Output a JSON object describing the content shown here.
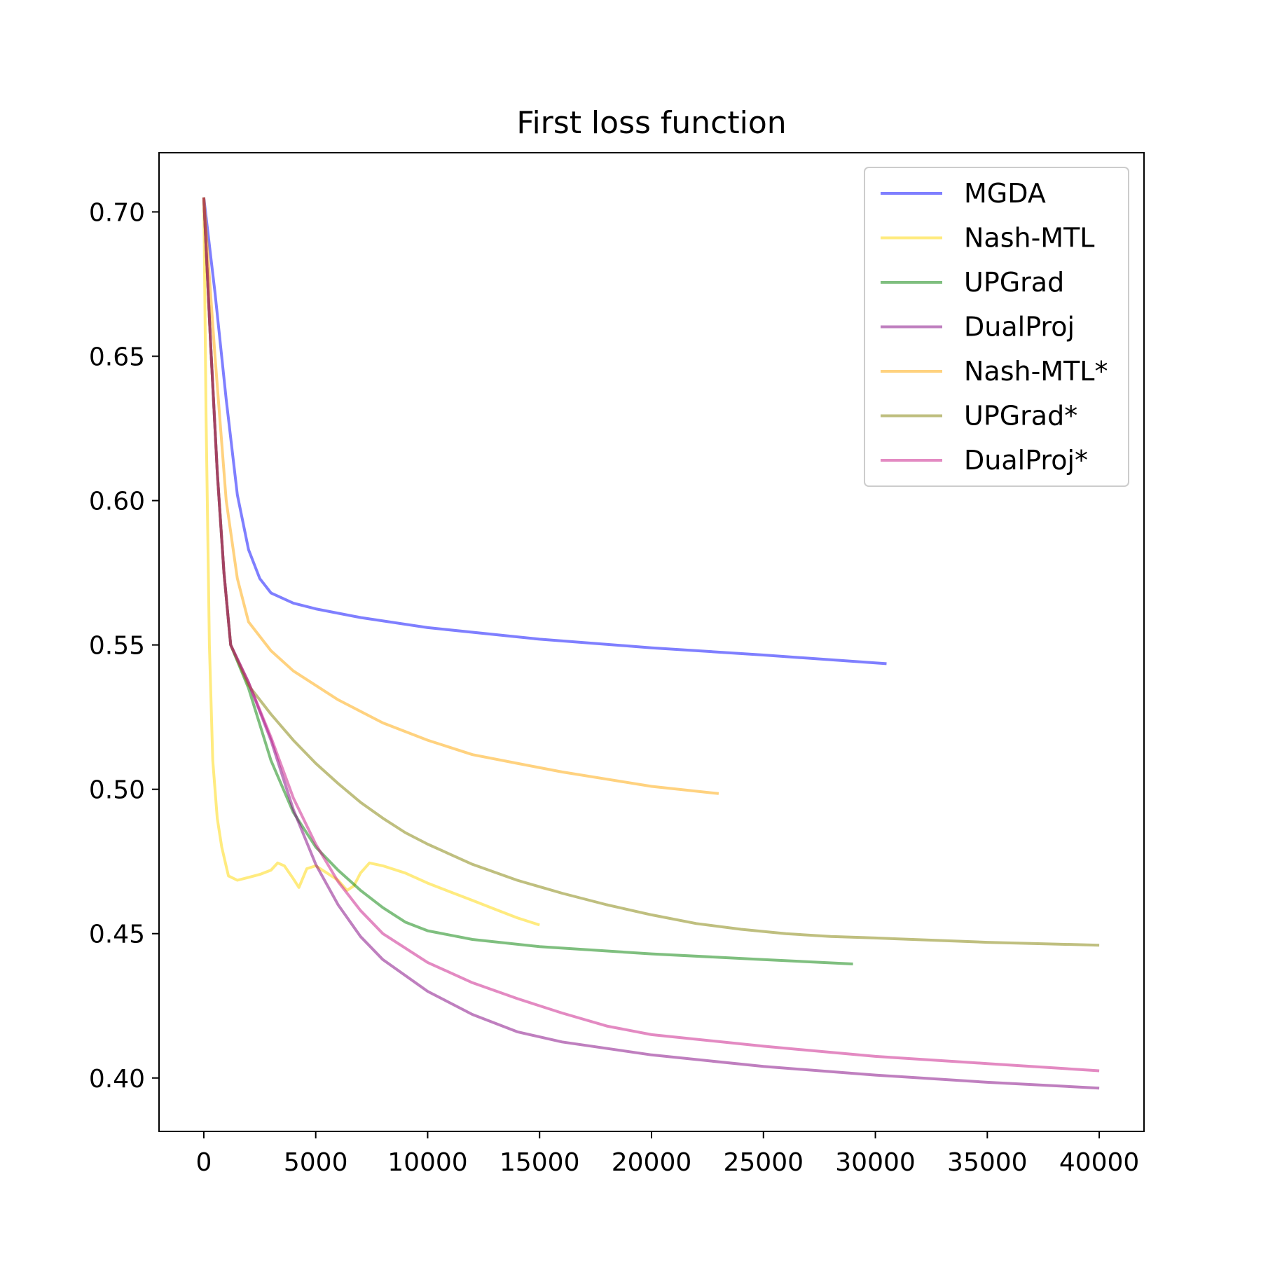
{
  "chart_data": {
    "type": "line",
    "title": "First loss function",
    "xlabel": "",
    "ylabel": "",
    "xlim": [
      -2000,
      42000
    ],
    "ylim": [
      0.3815,
      0.7205
    ],
    "xticks": [
      0,
      5000,
      10000,
      15000,
      20000,
      25000,
      30000,
      35000,
      40000
    ],
    "yticks": [
      0.4,
      0.45,
      0.5,
      0.55,
      0.6,
      0.65,
      0.7
    ],
    "grid": false,
    "legend": {
      "placement": "top-right"
    },
    "series": [
      {
        "name": "MGDA",
        "color": "#0000ff",
        "opacity": 0.5,
        "points": [
          [
            0,
            0.705
          ],
          [
            500,
            0.672
          ],
          [
            1000,
            0.635
          ],
          [
            1500,
            0.602
          ],
          [
            2000,
            0.583
          ],
          [
            2500,
            0.573
          ],
          [
            3000,
            0.568
          ],
          [
            4000,
            0.5645
          ],
          [
            5000,
            0.5625
          ],
          [
            7000,
            0.5595
          ],
          [
            10000,
            0.556
          ],
          [
            15000,
            0.552
          ],
          [
            20000,
            0.549
          ],
          [
            25000,
            0.5465
          ],
          [
            30500,
            0.5435
          ]
        ]
      },
      {
        "name": "Nash-MTL",
        "color": "#ffd700",
        "opacity": 0.5,
        "points": [
          [
            0,
            0.705
          ],
          [
            100,
            0.63
          ],
          [
            250,
            0.55
          ],
          [
            400,
            0.51
          ],
          [
            600,
            0.49
          ],
          [
            800,
            0.48
          ],
          [
            1100,
            0.47
          ],
          [
            1500,
            0.4685
          ],
          [
            2000,
            0.4695
          ],
          [
            2500,
            0.4705
          ],
          [
            3000,
            0.472
          ],
          [
            3300,
            0.4745
          ],
          [
            3600,
            0.4735
          ],
          [
            4000,
            0.469
          ],
          [
            4250,
            0.466
          ],
          [
            4600,
            0.4725
          ],
          [
            5000,
            0.4735
          ],
          [
            5500,
            0.471
          ],
          [
            6000,
            0.4685
          ],
          [
            6400,
            0.465
          ],
          [
            6700,
            0.4665
          ],
          [
            7000,
            0.471
          ],
          [
            7400,
            0.4745
          ],
          [
            8000,
            0.4735
          ],
          [
            9000,
            0.471
          ],
          [
            10000,
            0.4675
          ],
          [
            11000,
            0.4645
          ],
          [
            12000,
            0.4615
          ],
          [
            13000,
            0.4585
          ],
          [
            14000,
            0.4555
          ],
          [
            15000,
            0.453
          ]
        ]
      },
      {
        "name": "UPGrad",
        "color": "#008000",
        "opacity": 0.5,
        "points": [
          [
            0,
            0.705
          ],
          [
            300,
            0.655
          ],
          [
            600,
            0.61
          ],
          [
            900,
            0.575
          ],
          [
            1200,
            0.55
          ],
          [
            2000,
            0.535
          ],
          [
            3000,
            0.51
          ],
          [
            4000,
            0.492
          ],
          [
            5000,
            0.48
          ],
          [
            6000,
            0.472
          ],
          [
            7000,
            0.465
          ],
          [
            8000,
            0.459
          ],
          [
            9000,
            0.454
          ],
          [
            10000,
            0.451
          ],
          [
            12000,
            0.448
          ],
          [
            15000,
            0.4455
          ],
          [
            20000,
            0.443
          ],
          [
            25000,
            0.441
          ],
          [
            29000,
            0.4395
          ]
        ]
      },
      {
        "name": "DualProj",
        "color": "#800080",
        "opacity": 0.5,
        "points": [
          [
            0,
            0.705
          ],
          [
            300,
            0.655
          ],
          [
            600,
            0.61
          ],
          [
            900,
            0.575
          ],
          [
            1200,
            0.55
          ],
          [
            2000,
            0.537
          ],
          [
            3000,
            0.517
          ],
          [
            4000,
            0.493
          ],
          [
            5000,
            0.474
          ],
          [
            6000,
            0.46
          ],
          [
            7000,
            0.449
          ],
          [
            8000,
            0.441
          ],
          [
            10000,
            0.43
          ],
          [
            12000,
            0.422
          ],
          [
            14000,
            0.416
          ],
          [
            16000,
            0.4125
          ],
          [
            20000,
            0.408
          ],
          [
            25000,
            0.404
          ],
          [
            30000,
            0.401
          ],
          [
            35000,
            0.3985
          ],
          [
            40000,
            0.3965
          ]
        ]
      },
      {
        "name": "Nash-MTL*",
        "color": "#ffa500",
        "opacity": 0.5,
        "points": [
          [
            0,
            0.705
          ],
          [
            500,
            0.65
          ],
          [
            1000,
            0.6
          ],
          [
            1500,
            0.573
          ],
          [
            2000,
            0.558
          ],
          [
            3000,
            0.548
          ],
          [
            4000,
            0.541
          ],
          [
            6000,
            0.531
          ],
          [
            8000,
            0.523
          ],
          [
            10000,
            0.517
          ],
          [
            12000,
            0.512
          ],
          [
            14000,
            0.509
          ],
          [
            16000,
            0.506
          ],
          [
            18000,
            0.5035
          ],
          [
            20000,
            0.501
          ],
          [
            23000,
            0.4985
          ]
        ]
      },
      {
        "name": "UPGrad*",
        "color": "#808000",
        "opacity": 0.5,
        "points": [
          [
            0,
            0.705
          ],
          [
            300,
            0.655
          ],
          [
            600,
            0.61
          ],
          [
            900,
            0.575
          ],
          [
            1200,
            0.55
          ],
          [
            2000,
            0.536
          ],
          [
            3000,
            0.526
          ],
          [
            4000,
            0.517
          ],
          [
            5000,
            0.509
          ],
          [
            6000,
            0.502
          ],
          [
            7000,
            0.4955
          ],
          [
            8000,
            0.49
          ],
          [
            9000,
            0.485
          ],
          [
            10000,
            0.481
          ],
          [
            12000,
            0.474
          ],
          [
            14000,
            0.4685
          ],
          [
            16000,
            0.464
          ],
          [
            18000,
            0.46
          ],
          [
            20000,
            0.4565
          ],
          [
            22000,
            0.4535
          ],
          [
            24000,
            0.4515
          ],
          [
            26000,
            0.45
          ],
          [
            28000,
            0.449
          ],
          [
            30000,
            0.4485
          ],
          [
            35000,
            0.447
          ],
          [
            40000,
            0.446
          ]
        ]
      },
      {
        "name": "DualProj*",
        "color": "#c71585",
        "opacity": 0.5,
        "points": [
          [
            0,
            0.705
          ],
          [
            300,
            0.655
          ],
          [
            600,
            0.61
          ],
          [
            900,
            0.575
          ],
          [
            1200,
            0.55
          ],
          [
            2000,
            0.537
          ],
          [
            3000,
            0.518
          ],
          [
            4000,
            0.497
          ],
          [
            5000,
            0.481
          ],
          [
            6000,
            0.468
          ],
          [
            7000,
            0.458
          ],
          [
            8000,
            0.45
          ],
          [
            10000,
            0.44
          ],
          [
            12000,
            0.433
          ],
          [
            14000,
            0.4275
          ],
          [
            16000,
            0.4225
          ],
          [
            18000,
            0.418
          ],
          [
            20000,
            0.415
          ],
          [
            25000,
            0.411
          ],
          [
            30000,
            0.4075
          ],
          [
            35000,
            0.405
          ],
          [
            40000,
            0.4025
          ]
        ]
      }
    ]
  }
}
